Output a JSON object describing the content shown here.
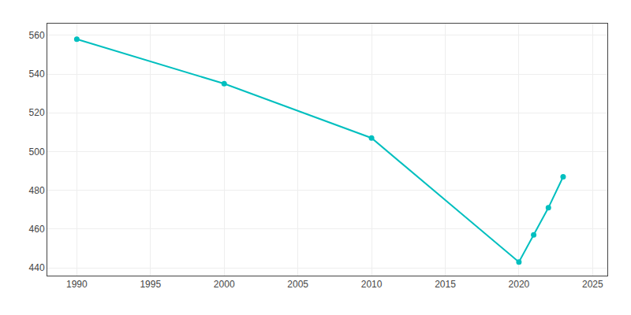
{
  "chart_data": {
    "type": "line",
    "x": [
      1990,
      2000,
      2010,
      2020,
      2021,
      2022,
      2023
    ],
    "values": [
      558,
      535,
      507,
      443,
      457,
      471,
      487
    ],
    "color": "#00BFBF",
    "marker": "circle",
    "xlim": [
      1988,
      2026
    ],
    "ylim": [
      436,
      566
    ],
    "xticks": [
      1990,
      1995,
      2000,
      2005,
      2010,
      2015,
      2020,
      2025
    ],
    "yticks": [
      440,
      460,
      480,
      500,
      520,
      540,
      560
    ],
    "grid": true
  }
}
